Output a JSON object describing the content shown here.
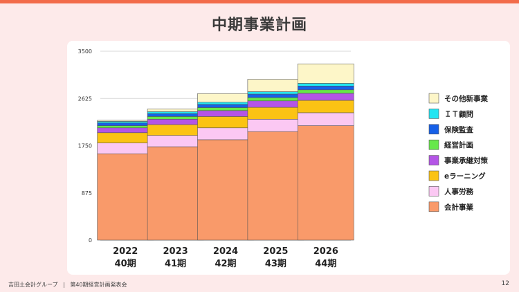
{
  "slide": {
    "title": "中期事業計画",
    "page_number": "12"
  },
  "footer": {
    "company": "吉田土会計グループ",
    "separator": "|",
    "subtitle": "第40期経営計画発表会"
  },
  "chart_data": {
    "type": "bar",
    "stacked": true,
    "categories": [
      "2022",
      "2023",
      "2024",
      "2025",
      "2026"
    ],
    "category_sublabels": [
      "40期",
      "41期",
      "42期",
      "43期",
      "44期"
    ],
    "ylim": [
      0,
      3500
    ],
    "yticks": [
      0,
      875,
      1750,
      2625,
      3500
    ],
    "grid": true,
    "legend_position": "right",
    "series": [
      {
        "name": "会計事業",
        "color": "#f99a6a",
        "values": [
          1600,
          1730,
          1860,
          2010,
          2120
        ]
      },
      {
        "name": "人事労務",
        "color": "#fbc8f3",
        "values": [
          200,
          210,
          220,
          230,
          240
        ]
      },
      {
        "name": "eラーニング",
        "color": "#fbc314",
        "values": [
          190,
          200,
          210,
          220,
          230
        ]
      },
      {
        "name": "事業承継対策",
        "color": "#b455e6",
        "values": [
          90,
          100,
          110,
          120,
          130
        ]
      },
      {
        "name": "経営計画",
        "color": "#66e84a",
        "values": [
          40,
          50,
          55,
          60,
          65
        ]
      },
      {
        "name": "保険監査",
        "color": "#1660e8",
        "values": [
          50,
          55,
          60,
          65,
          70
        ]
      },
      {
        "name": "ＩＴ顧問",
        "color": "#22e5f2",
        "values": [
          30,
          35,
          40,
          45,
          50
        ]
      },
      {
        "name": "その他新事業",
        "color": "#fdf6c8",
        "values": [
          20,
          50,
          160,
          230,
          360
        ]
      }
    ]
  }
}
